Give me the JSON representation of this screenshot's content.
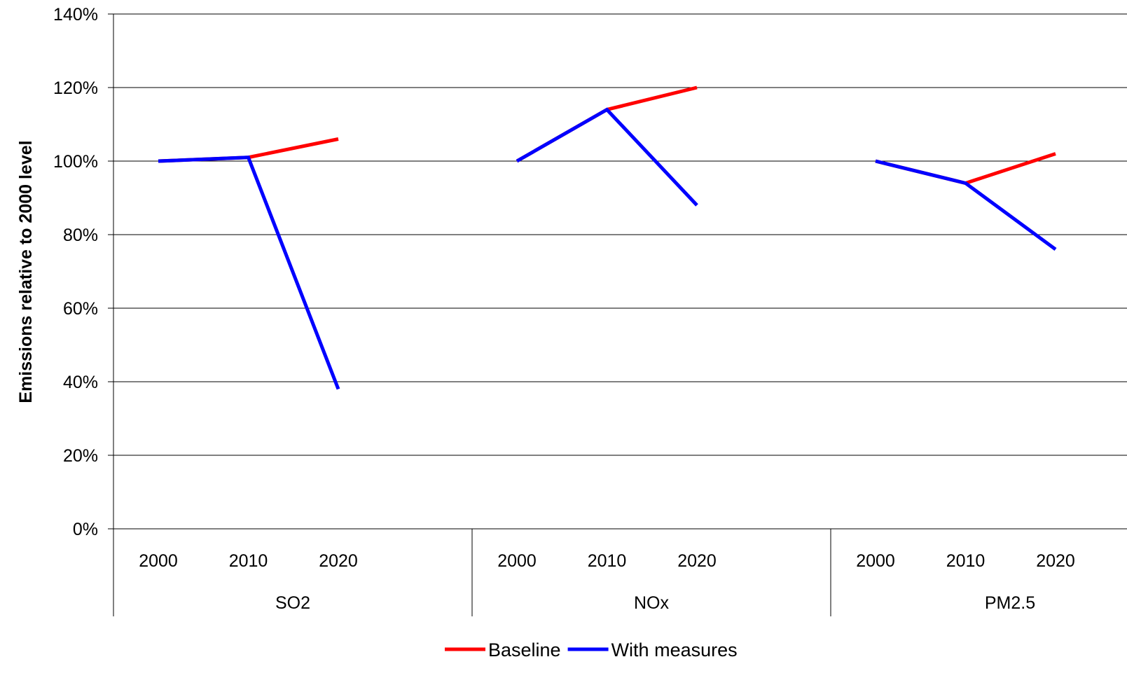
{
  "chart_data": {
    "type": "line",
    "title": "",
    "ylabel": "Emissions relative to 2000 level",
    "ylim": [
      0,
      140
    ],
    "y_ticks": [
      "0%",
      "20%",
      "40%",
      "60%",
      "80%",
      "100%",
      "120%",
      "140%"
    ],
    "y_tick_values": [
      0,
      20,
      40,
      60,
      80,
      100,
      120,
      140
    ],
    "grid": true,
    "legend_position": "bottom",
    "groups": [
      {
        "name": "SO2",
        "years": [
          "2000",
          "2010",
          "2020"
        ]
      },
      {
        "name": "NOx",
        "years": [
          "2000",
          "2010",
          "2020"
        ]
      },
      {
        "name": "PM2.5",
        "years": [
          "2000",
          "2010",
          "2020"
        ]
      }
    ],
    "series": [
      {
        "name": "Baseline",
        "color": "#ff0000",
        "values": [
          [
            100,
            101,
            106
          ],
          [
            100,
            114,
            120
          ],
          [
            100,
            94,
            102
          ]
        ]
      },
      {
        "name": "With measures",
        "color": "#0000ff",
        "values": [
          [
            100,
            101,
            38
          ],
          [
            100,
            114,
            88
          ],
          [
            100,
            94,
            76
          ]
        ]
      }
    ]
  }
}
